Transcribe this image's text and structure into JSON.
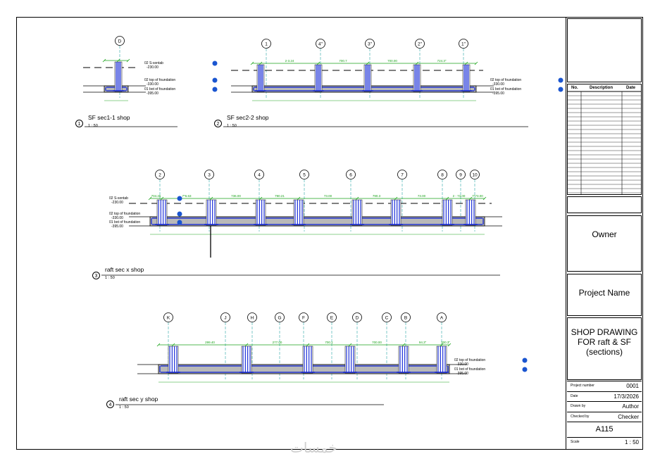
{
  "title_block": {
    "owner": "Owner",
    "project_name": "Project Name",
    "sheet_title": [
      "SHOP DRAWING",
      "FOR raft & SF",
      "(sections)"
    ],
    "revision_headers": [
      "No.",
      "Description",
      "Date"
    ],
    "project_number_label": "Project number",
    "project_number": "0001",
    "date_label": "Date",
    "date": "17/3/2026",
    "drawn_by_label": "Drawn by",
    "drawn_by": "Author",
    "checked_by_label": "Checked by",
    "checked_by": "Checker",
    "sheet_number": "A115",
    "scale_label": "Scale",
    "scale": "1 : 50"
  },
  "views": [
    {
      "number": "1",
      "title": "SF sec1-1 shop",
      "scale": "1 : 50",
      "grid_labels": [
        "D"
      ]
    },
    {
      "number": "2",
      "title": "SF sec2-2 shop",
      "scale": "1 : 50",
      "grid_labels": [
        "1",
        "4\"",
        "3\"",
        "2\"",
        "1\""
      ]
    },
    {
      "number": "3",
      "title": "raft sec x shop",
      "scale": "1 : 50",
      "grid_labels": [
        "2",
        "3",
        "4",
        "5",
        "6",
        "7",
        "8",
        "9",
        "10"
      ]
    },
    {
      "number": "4",
      "title": "raft sec y shop",
      "scale": "1 : 50",
      "grid_labels": [
        "K",
        "J",
        "H",
        "G",
        "F",
        "E",
        "D",
        "C",
        "B",
        "A"
      ]
    }
  ],
  "levels": {
    "s_sontab": "02 S-sontab",
    "s_sontab_elev": "-230.00",
    "top_foundation": "02 top of foundation",
    "top_foundation_elev": "-330.00",
    "bot_foundation": "01 bot of foundation",
    "bot_foundation_elev": "-395.00"
  },
  "dimensions": {
    "sec2": [
      "2-3.24",
      "700.7",
      "700.00",
      "724.3\""
    ],
    "secx": [
      "704.26",
      "7*6.63",
      "736.00",
      "790.21",
      "73.00",
      "790.3",
      "73.00",
      "2 - 73.00",
      "7*73.00"
    ],
    "secy": [
      "299.40",
      "277.00",
      "700.1",
      "700.00",
      "94.3\"",
      "300.3\""
    ]
  },
  "watermark": "خمسات",
  "colors": {
    "rebar": "#0a1fd6",
    "dimension": "#1aa31a",
    "grid": "#2aa5a5",
    "concrete": "#b9b9b9"
  }
}
